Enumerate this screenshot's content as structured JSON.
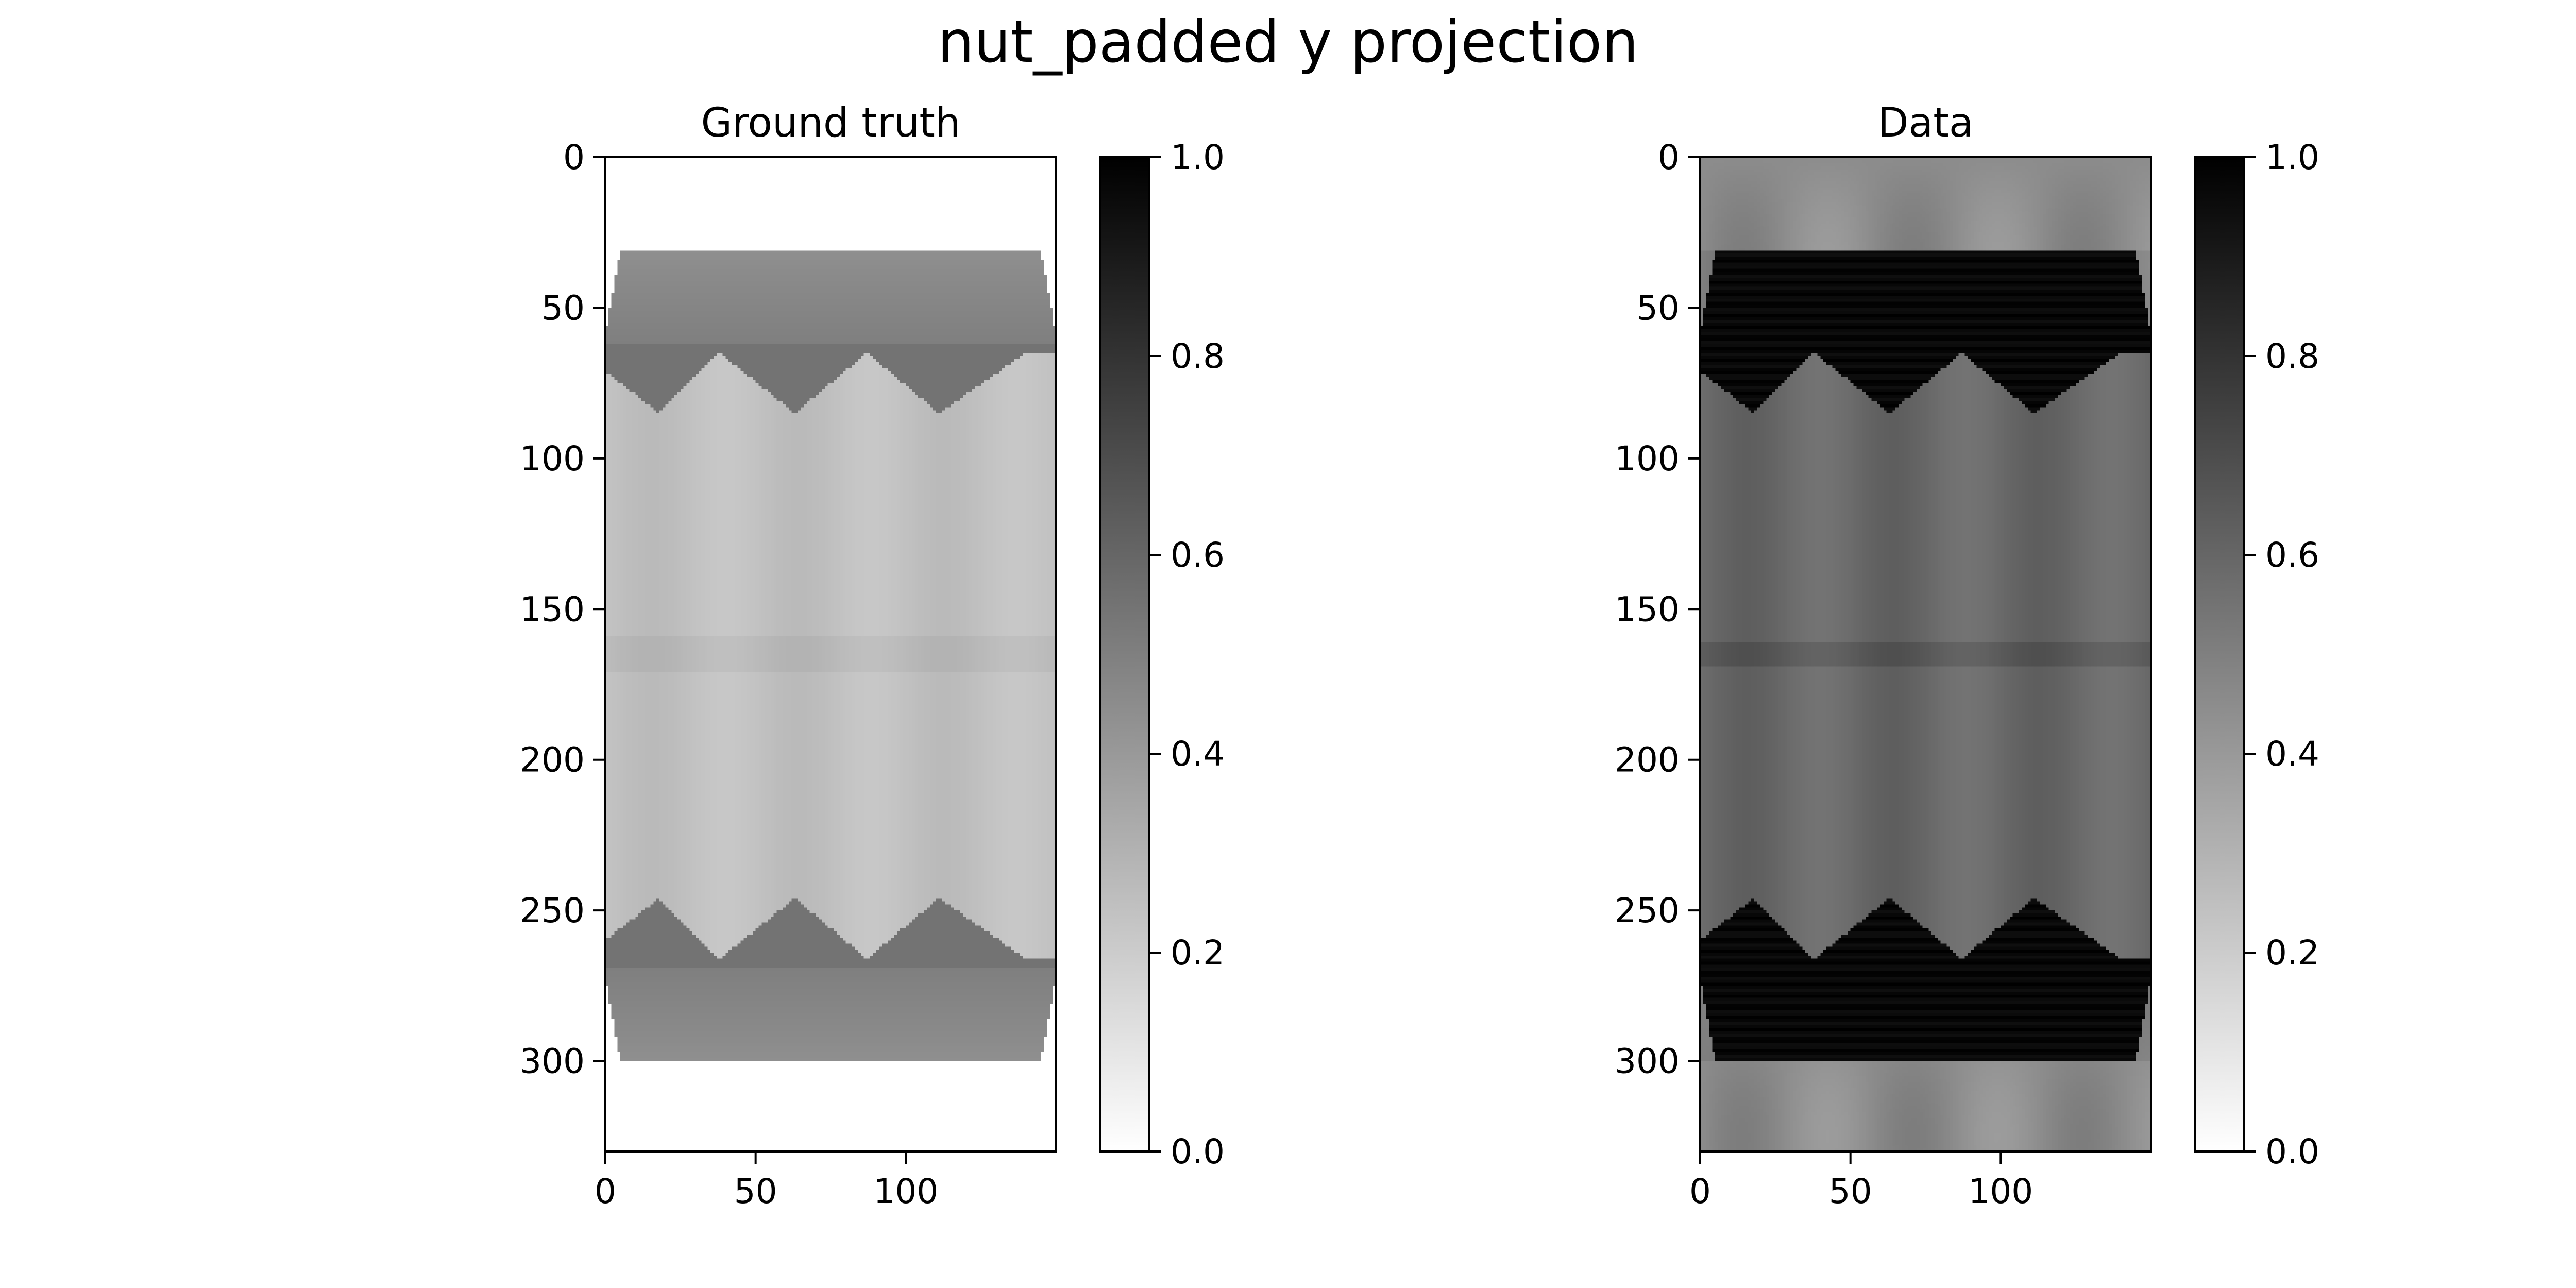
{
  "figure": {
    "title": "nut_padded y projection"
  },
  "chart_data": [
    {
      "type": "heatmap",
      "title": "Ground truth",
      "colormap": "gray_r",
      "xlim": [
        0,
        150
      ],
      "ylim": [
        330,
        0
      ],
      "x_ticks": [
        0,
        50,
        100
      ],
      "x_tick_labels": [
        "0",
        "50",
        "100"
      ],
      "y_ticks": [
        0,
        50,
        100,
        150,
        200,
        250,
        300
      ],
      "y_tick_labels": [
        "0",
        "50",
        "100",
        "150",
        "200",
        "250",
        "300"
      ],
      "colorbar": {
        "range": [
          0.0,
          1.0
        ],
        "ticks": [
          0.0,
          0.2,
          0.4,
          0.6,
          0.8,
          1.0
        ],
        "tick_labels": [
          "0.0",
          "0.2",
          "0.4",
          "0.6",
          "0.8",
          "1.0"
        ]
      },
      "object_rows": [
        31,
        300
      ],
      "values_summary": {
        "background": 0.0,
        "caps_top_and_bottom": 0.45,
        "zigzag_band": 0.55,
        "body_min": 0.2,
        "body_max": 0.3,
        "zigzag_peaks_x": [
          18,
          63,
          111
        ],
        "zigzag_valleys_x": [
          38,
          87,
          140
        ]
      }
    },
    {
      "type": "heatmap",
      "title": "Data",
      "colormap": "gray_r",
      "xlim": [
        0,
        150
      ],
      "ylim": [
        330,
        0
      ],
      "x_ticks": [
        0,
        50,
        100
      ],
      "x_tick_labels": [
        "0",
        "50",
        "100"
      ],
      "y_ticks": [
        0,
        50,
        100,
        150,
        200,
        250,
        300
      ],
      "y_tick_labels": [
        "0",
        "50",
        "100",
        "150",
        "200",
        "250",
        "300"
      ],
      "colorbar": {
        "range": [
          0.0,
          1.0
        ],
        "ticks": [
          0.0,
          0.2,
          0.4,
          0.6,
          0.8,
          1.0
        ],
        "tick_labels": [
          "0.0",
          "0.2",
          "0.4",
          "0.6",
          "0.8",
          "1.0"
        ]
      },
      "object_rows": [
        31,
        300
      ],
      "values_summary": {
        "background": 0.5,
        "caps_top_and_bottom": 1.0,
        "body_min": 0.5,
        "body_max": 0.65,
        "zigzag_peaks_x": [
          18,
          63,
          111
        ],
        "zigzag_valleys_x": [
          38,
          87,
          140
        ]
      }
    }
  ]
}
